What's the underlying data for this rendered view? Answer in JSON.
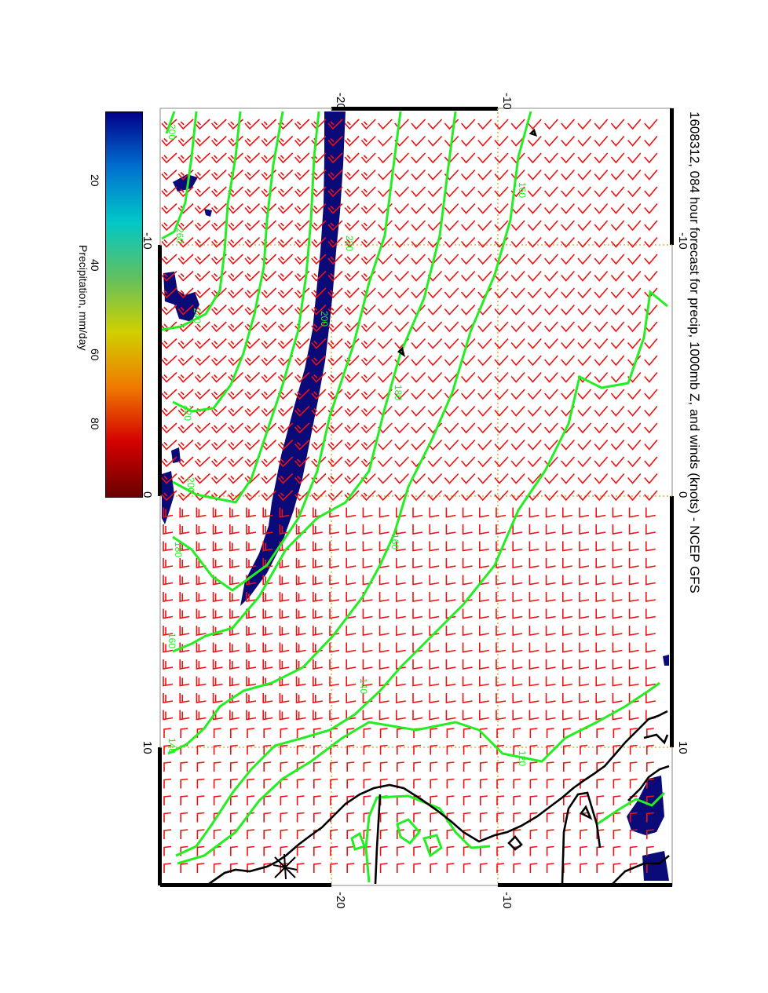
{
  "title": "1608312, 084 hour forecast for precip, 1000mb Z, and winds (knots) - NCEP GFS",
  "colorbar": {
    "label": "Precipitation, mm/day",
    "ticks": [
      "20",
      "40",
      "60",
      "80"
    ],
    "range": [
      0,
      100
    ],
    "colors": [
      "#6a0000",
      "#d40000",
      "#f07a00",
      "#d0d000",
      "#60c060",
      "#00c8c8",
      "#0070d0",
      "#00008a"
    ]
  },
  "map": {
    "top_ticks": [
      "-20",
      "-10"
    ],
    "bottom_ticks": [
      "-20",
      "-10"
    ],
    "left_ticks": [
      "-10",
      "0",
      "10"
    ],
    "right_ticks": [
      "-10",
      "0",
      "10"
    ],
    "contour_labels": [
      "200",
      "260",
      "240",
      "220",
      "200",
      "180",
      "160",
      "140",
      "220",
      "200",
      "180",
      "160",
      "140",
      "160",
      "120"
    ],
    "colors": {
      "contour": "#22ee22",
      "barb": "#ee1111",
      "coast": "#000000",
      "precip": "#0a0a78",
      "grid": "#d4a020"
    }
  }
}
